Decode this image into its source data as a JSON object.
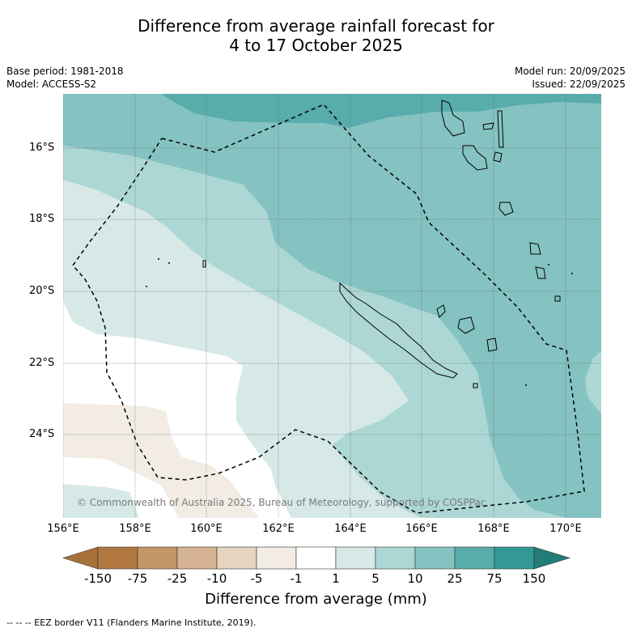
{
  "title": {
    "line1": "Difference from average rainfall forecast for",
    "line2": "4 to 17 October 2025"
  },
  "meta": {
    "base_period": "Base period: 1981-2018",
    "model": "Model: ACCESS-S2",
    "model_run": "Model run: 20/09/2025",
    "issued": "Issued: 22/09/2025"
  },
  "lat_ticks": [
    "16°S",
    "18°S",
    "20°S",
    "22°S",
    "24°S"
  ],
  "lon_ticks": [
    "156°E",
    "158°E",
    "160°E",
    "162°E",
    "164°E",
    "166°E",
    "168°E",
    "170°E"
  ],
  "credit": "© Commonwealth of Australia 2025, Bureau of Meteorology, supported by COSPPac",
  "colorbar": {
    "labels": [
      "-150",
      "-75",
      "-25",
      "-10",
      "-5",
      "-1",
      "1",
      "5",
      "10",
      "25",
      "75",
      "150"
    ],
    "colors": [
      "#a8703a",
      "#b07840",
      "#c49566",
      "#d6b393",
      "#e6d3c0",
      "#f2ece5",
      "#ffffff",
      "#d6e9e7",
      "#add7d5",
      "#84c3c1",
      "#58acab",
      "#339996",
      "#227c78"
    ],
    "title": "Difference from average (mm)"
  },
  "footnote": "--  --  -- EEZ border V11 (Flanders Marine Institute, 2019)."
}
